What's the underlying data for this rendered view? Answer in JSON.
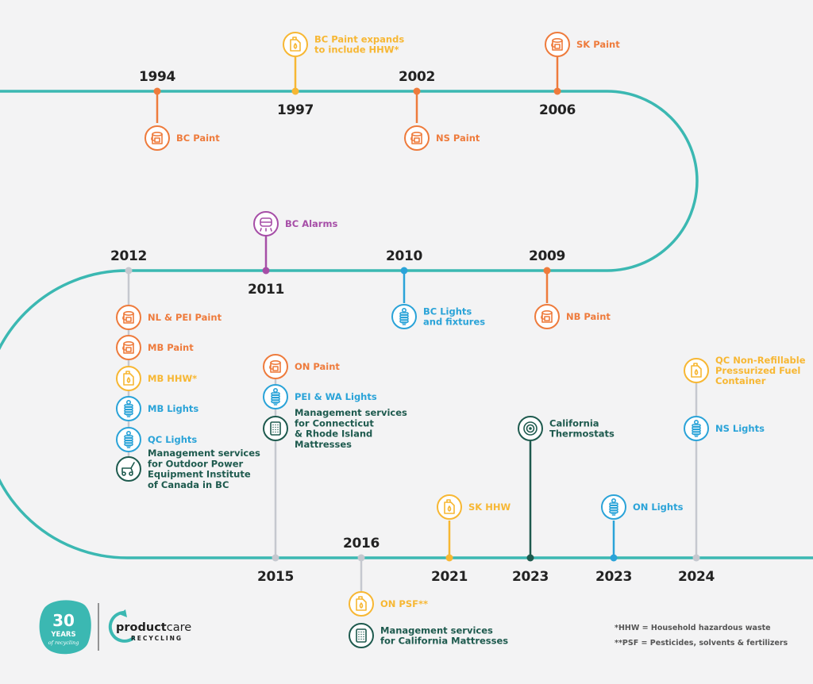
{
  "colors": {
    "track": "#3bb8b2",
    "paint": "#ee7b3c",
    "hhw": "#f7b733",
    "alarm": "#a64ea7",
    "lights": "#2aa3d8",
    "dark": "#1e5a4e",
    "grey": "#c5c8cf",
    "text": "#222222"
  },
  "years": [
    {
      "id": "1994",
      "label": "1994"
    },
    {
      "id": "1997",
      "label": "1997"
    },
    {
      "id": "2002",
      "label": "2002"
    },
    {
      "id": "2006",
      "label": "2006"
    },
    {
      "id": "2009",
      "label": "2009"
    },
    {
      "id": "2010",
      "label": "2010"
    },
    {
      "id": "2011",
      "label": "2011"
    },
    {
      "id": "2012",
      "label": "2012"
    },
    {
      "id": "2015",
      "label": "2015"
    },
    {
      "id": "2016",
      "label": "2016"
    },
    {
      "id": "2021",
      "label": "2021"
    },
    {
      "id": "2023a",
      "label": "2023"
    },
    {
      "id": "2023b",
      "label": "2023"
    },
    {
      "id": "2024",
      "label": "2024"
    }
  ],
  "events": [
    {
      "id": "bc-paint",
      "year": "1994",
      "icon": "paint-can",
      "color": "paint",
      "lines": [
        "BC Paint"
      ]
    },
    {
      "id": "bc-paint-hhw",
      "year": "1997",
      "icon": "fuel-can",
      "color": "hhw",
      "lines": [
        "BC Paint expands",
        "to include HHW*"
      ]
    },
    {
      "id": "ns-paint",
      "year": "2002",
      "icon": "paint-can",
      "color": "paint",
      "lines": [
        "NS Paint"
      ]
    },
    {
      "id": "sk-paint",
      "year": "2006",
      "icon": "paint-can",
      "color": "paint",
      "lines": [
        "SK Paint"
      ]
    },
    {
      "id": "nb-paint",
      "year": "2009",
      "icon": "paint-can",
      "color": "paint",
      "lines": [
        "NB Paint"
      ]
    },
    {
      "id": "bc-lights",
      "year": "2010",
      "icon": "bulb",
      "color": "lights",
      "lines": [
        "BC Lights",
        "and fixtures"
      ]
    },
    {
      "id": "bc-alarms",
      "year": "2011",
      "icon": "alarm",
      "color": "alarm",
      "lines": [
        "BC Alarms"
      ]
    },
    {
      "id": "nl-pei-paint",
      "year": "2012",
      "icon": "paint-can",
      "color": "paint",
      "lines": [
        "NL & PEI Paint"
      ]
    },
    {
      "id": "mb-paint",
      "year": "2012",
      "icon": "paint-can",
      "color": "paint",
      "lines": [
        "MB Paint"
      ]
    },
    {
      "id": "mb-hhw",
      "year": "2012",
      "icon": "fuel-can",
      "color": "hhw",
      "lines": [
        "MB HHW*"
      ]
    },
    {
      "id": "mb-lights",
      "year": "2012",
      "icon": "bulb",
      "color": "lights",
      "lines": [
        "MB Lights"
      ]
    },
    {
      "id": "qc-lights",
      "year": "2012",
      "icon": "bulb",
      "color": "lights",
      "lines": [
        "QC Lights"
      ]
    },
    {
      "id": "opei",
      "year": "2012",
      "icon": "mower",
      "color": "dark",
      "lines": [
        "Management services",
        "for Outdoor Power",
        "Equipment Institute",
        "of Canada in BC"
      ]
    },
    {
      "id": "on-paint",
      "year": "2015",
      "icon": "paint-can",
      "color": "paint",
      "lines": [
        "ON Paint"
      ]
    },
    {
      "id": "pei-wa-lights",
      "year": "2015",
      "icon": "bulb",
      "color": "lights",
      "lines": [
        "PEI & WA Lights"
      ]
    },
    {
      "id": "ct-ri-mattress",
      "year": "2015",
      "icon": "mattress",
      "color": "dark",
      "lines": [
        "Management services",
        "for Connecticut",
        "& Rhode Island",
        "Mattresses"
      ]
    },
    {
      "id": "on-psf",
      "year": "2016",
      "icon": "fuel-can",
      "color": "hhw",
      "lines": [
        "ON PSF**"
      ]
    },
    {
      "id": "ca-mattress",
      "year": "2016",
      "icon": "mattress",
      "color": "dark",
      "lines": [
        "Management services",
        "for California Mattresses"
      ]
    },
    {
      "id": "sk-hhw",
      "year": "2021",
      "icon": "fuel-can",
      "color": "hhw",
      "lines": [
        "SK HHW"
      ]
    },
    {
      "id": "ca-thermostats",
      "year": "2023a",
      "icon": "thermostat",
      "color": "dark",
      "lines": [
        "California",
        "Thermostats"
      ]
    },
    {
      "id": "on-lights",
      "year": "2023b",
      "icon": "bulb",
      "color": "lights",
      "lines": [
        "ON Lights"
      ]
    },
    {
      "id": "ns-lights",
      "year": "2024",
      "icon": "bulb",
      "color": "lights",
      "lines": [
        "NS Lights"
      ]
    },
    {
      "id": "qc-fuel",
      "year": "2024",
      "icon": "fuel-can",
      "color": "hhw",
      "lines": [
        "QC Non-Refillable",
        "Pressurized Fuel",
        "Container"
      ]
    }
  ],
  "footnotes": [
    "*HHW = Household hazardous waste",
    "**PSF = Pesticides, solvents & fertilizers"
  ],
  "logo": {
    "badge_number": "30",
    "badge_word": "YEARS",
    "badge_tagline": "of recycling",
    "brand_bold": "product",
    "brand_rest": "care",
    "brand_sub": "RECYCLING"
  }
}
